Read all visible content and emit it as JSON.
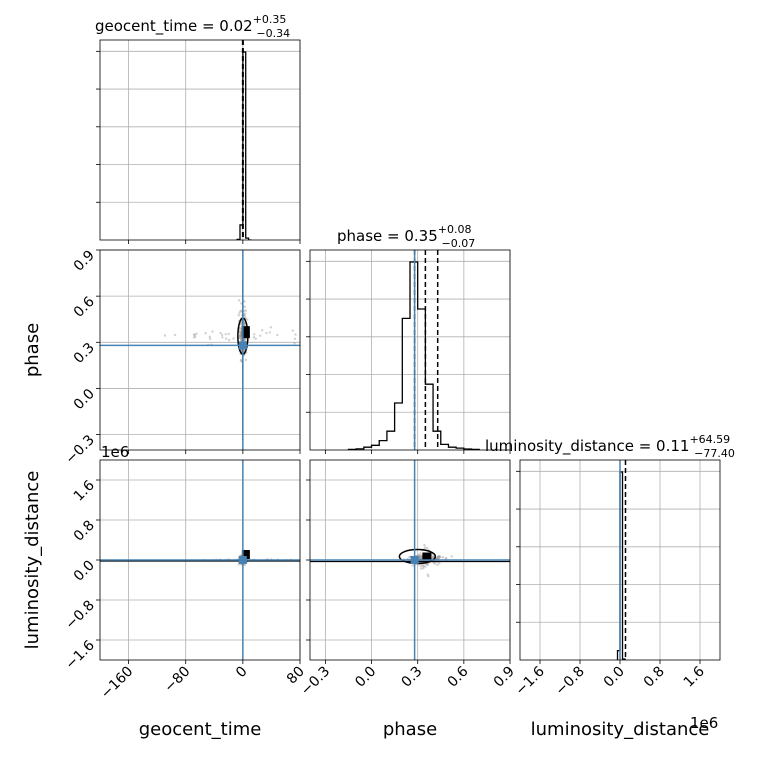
{
  "chart_data": {
    "type": "corner",
    "grid": true,
    "parameters": [
      "geocent_time",
      "phase",
      "luminosity_distance"
    ],
    "truths": {
      "geocent_time": 0.0,
      "phase": 0.28,
      "luminosity_distance": 0.0
    },
    "truth_color": "#4682b4",
    "titles": {
      "geocent_time": {
        "label": "geocent_time = 0.02",
        "plus": "+0.35",
        "minus": "−0.34"
      },
      "phase": {
        "label": "phase = 0.35",
        "plus": "+0.08",
        "minus": "−0.07"
      },
      "luminosity_distance": {
        "label": "luminosity_distance = 0.11",
        "plus": "+64.59",
        "minus": "−77.40"
      }
    },
    "quantiles": {
      "geocent_time": [
        -0.32,
        0.02,
        0.37
      ],
      "phase": [
        0.28,
        0.35,
        0.43
      ],
      "luminosity_distance": [
        -77.4,
        0.11,
        64.7
      ]
    },
    "axes": {
      "geocent_time": {
        "range": [
          -200,
          80
        ],
        "ticks": [
          -160,
          -80,
          0,
          80
        ],
        "ticklabels": [
          "−160",
          "−80",
          "0",
          "80"
        ],
        "offset": ""
      },
      "phase": {
        "range": [
          -0.4,
          0.9
        ],
        "ticks": [
          -0.3,
          0.0,
          0.3,
          0.6,
          0.9
        ],
        "ticklabels": [
          "−0.3",
          "0.0",
          "0.3",
          "0.6",
          "0.9"
        ],
        "offset": ""
      },
      "luminosity_distance": {
        "range": [
          -2.0,
          2.0
        ],
        "ticks": [
          -1.6,
          -0.8,
          0.0,
          0.8,
          1.6
        ],
        "ticklabels": [
          "−1.6",
          "−0.8",
          "0.0",
          "0.8",
          "1.6"
        ],
        "offset": "1e6"
      }
    },
    "histograms": {
      "geocent_time": {
        "edges": [
          -8,
          -4,
          0,
          4,
          8,
          12
        ],
        "counts": [
          0.3,
          8,
          100,
          1,
          0
        ]
      },
      "phase": {
        "edges": [
          -0.15,
          -0.1,
          -0.05,
          0.0,
          0.05,
          0.1,
          0.15,
          0.2,
          0.25,
          0.3,
          0.35,
          0.4,
          0.45,
          0.5,
          0.55,
          0.6,
          0.65,
          0.7
        ],
        "counts": [
          0.3,
          0.6,
          1.5,
          2.5,
          5,
          10,
          25,
          70,
          100,
          75,
          35,
          10,
          3,
          1.5,
          1,
          0.5,
          0.3
        ]
      },
      "luminosity_distance": {
        "edges": [
          -0.05,
          0.0,
          0.05,
          0.1
        ],
        "counts": [
          5,
          100,
          0.5
        ]
      }
    },
    "peaks": {
      "geocent_time|phase": {
        "x": 0.0,
        "y": 0.34
      },
      "geocent_time|luminosity_distance": {
        "x": 0.0,
        "y": 0.0
      },
      "phase|luminosity_distance": {
        "x": 0.35,
        "y": 0.01
      }
    },
    "axis_labels": {
      "x": [
        "geocent_time",
        "phase",
        "luminosity_distance"
      ],
      "y": [
        "phase",
        "luminosity_distance"
      ]
    }
  }
}
